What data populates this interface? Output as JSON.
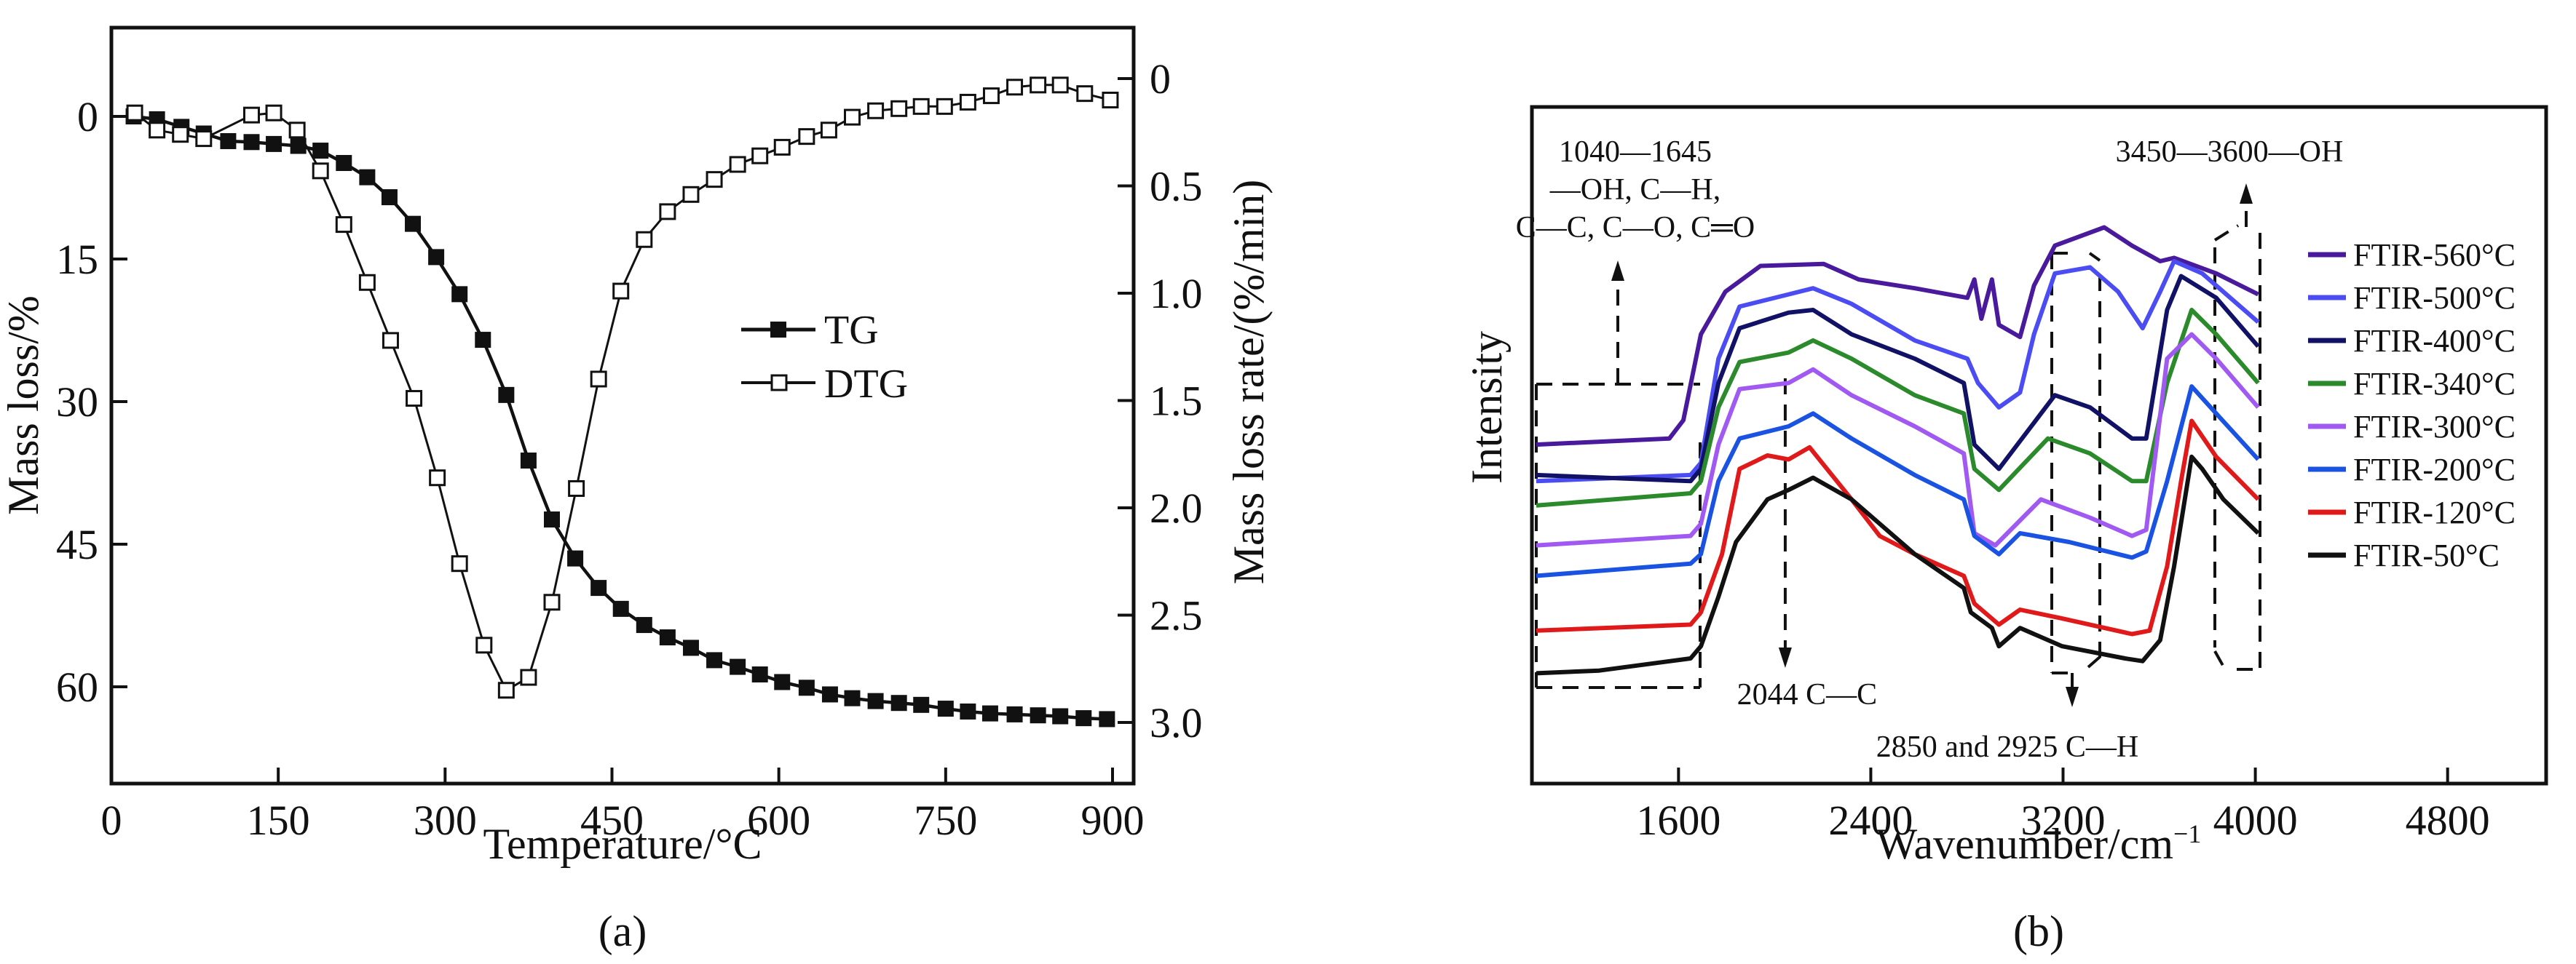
{
  "chart_data": [
    {
      "id": "a",
      "type": "line",
      "panel_label": "(a)",
      "xlabel": "Temperature/°C",
      "ylabel": "Mass loss/%",
      "y2label": "Mass loss rate/(%/min)",
      "xlim": [
        0,
        920
      ],
      "ylim": [
        69,
        -8
      ],
      "y2lim": [
        3.25,
        -0.12
      ],
      "xticks": [
        0,
        150,
        300,
        450,
        600,
        750,
        900
      ],
      "yticks": [
        0,
        15,
        30,
        45,
        60
      ],
      "y2ticks": [
        0,
        0.5,
        1.0,
        1.5,
        2.0,
        2.5,
        3.0
      ],
      "y2tick_labels": [
        "0",
        "0.5",
        "1.0",
        "1.5",
        "2.0",
        "2.5",
        "3.0"
      ],
      "grid": false,
      "legend_position": "center-right",
      "series": [
        {
          "name": "TG",
          "axis": "left",
          "marker": "filled-square",
          "x": [
            20,
            41,
            63,
            83,
            105,
            126,
            146,
            168,
            188,
            209,
            230,
            250,
            271,
            292,
            313,
            334,
            355,
            375,
            396,
            417,
            438,
            458,
            479,
            500,
            521,
            542,
            563,
            583,
            603,
            625,
            646,
            666,
            687,
            708,
            728,
            750,
            770,
            790,
            812,
            833,
            853,
            874,
            895
          ],
          "values": [
            0.0,
            0.3,
            1.1,
            1.8,
            2.6,
            2.7,
            2.9,
            3.1,
            3.6,
            4.9,
            6.4,
            8.5,
            11.3,
            14.8,
            18.7,
            23.5,
            29.3,
            36.2,
            42.4,
            46.5,
            49.6,
            51.8,
            53.5,
            54.8,
            55.9,
            57.2,
            57.9,
            58.7,
            59.5,
            60.1,
            60.8,
            61.2,
            61.5,
            61.7,
            61.9,
            62.3,
            62.6,
            62.8,
            62.9,
            63.0,
            63.1,
            63.3,
            63.4
          ]
        },
        {
          "name": "DTG",
          "axis": "right",
          "marker": "open-square",
          "x": [
            21,
            41,
            62,
            83,
            126,
            146,
            167,
            188,
            209,
            230,
            251,
            272,
            293,
            313,
            335,
            355,
            375,
            396,
            418,
            438,
            458,
            479,
            500,
            521,
            542,
            563,
            583,
            603,
            625,
            645,
            666,
            687,
            708,
            728,
            749,
            770,
            791,
            812,
            833,
            853,
            875,
            898
          ],
          "values": [
            0.16,
            0.24,
            0.26,
            0.28,
            0.17,
            0.16,
            0.24,
            0.43,
            0.68,
            0.95,
            1.22,
            1.49,
            1.86,
            2.26,
            2.64,
            2.85,
            2.79,
            2.44,
            1.91,
            1.4,
            0.99,
            0.75,
            0.62,
            0.54,
            0.47,
            0.4,
            0.36,
            0.32,
            0.27,
            0.24,
            0.18,
            0.15,
            0.14,
            0.13,
            0.13,
            0.11,
            0.08,
            0.04,
            0.03,
            0.03,
            0.07,
            0.1
          ]
        }
      ]
    },
    {
      "id": "b",
      "type": "line",
      "panel_label": "(b)",
      "xlabel": "Wavenumber/cm",
      "xlabel_superscript": "−1",
      "ylabel": "Intensity",
      "xlim": [
        990,
        5210
      ],
      "ylim": [
        0,
        100
      ],
      "y_units": "arbitrary (relative, 0–100 of plot height)",
      "xticks": [
        1600,
        2400,
        3200,
        4000,
        4800
      ],
      "yticks": [],
      "grid": false,
      "legend_position": "right",
      "annotations": [
        {
          "id": "box-1040-1645",
          "lines": [
            "1040—1645",
            "—OH, C—H,",
            "C—C, C—O, C═O"
          ],
          "range": [
            1000,
            1660
          ],
          "arrow": "up"
        },
        {
          "id": "mark-2044",
          "lines": [
            "2044 C—C"
          ],
          "at": 2044,
          "arrow": "down"
        },
        {
          "id": "box-2850-2925",
          "lines": [
            "2850 and 2925 C—H"
          ],
          "range": [
            2780,
            3000
          ],
          "arrow": "down"
        },
        {
          "id": "box-3450-3600",
          "lines": [
            "3450—3600—OH"
          ],
          "range": [
            3450,
            3620
          ],
          "arrow": "up"
        }
      ],
      "series": [
        {
          "name": "FTIR-560°C",
          "color": "#4a1a9c",
          "points": [
            [
              1008,
              50.1
            ],
            [
              1562,
              51.0
            ],
            [
              1620,
              53.7
            ],
            [
              1693,
              66.4
            ],
            [
              1795,
              72.7
            ],
            [
              1941,
              76.5
            ],
            [
              2204,
              76.8
            ],
            [
              2350,
              74.5
            ],
            [
              2583,
              73.2
            ],
            [
              2802,
              71.8
            ],
            [
              2831,
              74.5
            ],
            [
              2860,
              68.7
            ],
            [
              2904,
              74.5
            ],
            [
              2933,
              67.8
            ],
            [
              3021,
              66.0
            ],
            [
              3079,
              73.6
            ],
            [
              3166,
              79.5
            ],
            [
              3371,
              82.2
            ],
            [
              3487,
              79.5
            ],
            [
              3604,
              77.2
            ],
            [
              3662,
              77.7
            ],
            [
              3837,
              75.4
            ],
            [
              4012,
              72.3
            ]
          ]
        },
        {
          "name": "FTIR-500°C",
          "color": "#4b4df2",
          "points": [
            [
              1008,
              44.7
            ],
            [
              1650,
              45.6
            ],
            [
              1693,
              47.4
            ],
            [
              1766,
              62.8
            ],
            [
              1854,
              70.5
            ],
            [
              2058,
              72.3
            ],
            [
              2160,
              73.2
            ],
            [
              2320,
              70.9
            ],
            [
              2583,
              65.5
            ],
            [
              2802,
              62.8
            ],
            [
              2846,
              59.2
            ],
            [
              2933,
              55.6
            ],
            [
              3021,
              57.8
            ],
            [
              3079,
              66.4
            ],
            [
              3166,
              75.4
            ],
            [
              3312,
              76.3
            ],
            [
              3429,
              72.7
            ],
            [
              3531,
              67.3
            ],
            [
              3604,
              72.7
            ],
            [
              3662,
              77.2
            ],
            [
              3779,
              75.4
            ],
            [
              4012,
              68.2
            ]
          ]
        },
        {
          "name": "FTIR-400°C",
          "color": "#111165",
          "points": [
            [
              1008,
              45.6
            ],
            [
              1650,
              44.7
            ],
            [
              1693,
              46.5
            ],
            [
              1766,
              59.2
            ],
            [
              1854,
              67.3
            ],
            [
              2058,
              69.6
            ],
            [
              2160,
              70.0
            ],
            [
              2320,
              66.4
            ],
            [
              2583,
              62.8
            ],
            [
              2787,
              59.2
            ],
            [
              2831,
              50.1
            ],
            [
              2933,
              46.5
            ],
            [
              3166,
              57.4
            ],
            [
              3312,
              55.6
            ],
            [
              3487,
              51.0
            ],
            [
              3546,
              51.0
            ],
            [
              3633,
              70.0
            ],
            [
              3691,
              75.0
            ],
            [
              3837,
              71.8
            ],
            [
              4012,
              64.6
            ]
          ]
        },
        {
          "name": "FTIR-340°C",
          "color": "#2b8a2b",
          "points": [
            [
              1008,
              41.1
            ],
            [
              1650,
              42.9
            ],
            [
              1693,
              44.7
            ],
            [
              1766,
              55.6
            ],
            [
              1854,
              62.3
            ],
            [
              2058,
              63.7
            ],
            [
              2160,
              65.5
            ],
            [
              2320,
              62.8
            ],
            [
              2583,
              57.4
            ],
            [
              2787,
              54.7
            ],
            [
              2831,
              46.5
            ],
            [
              2933,
              43.4
            ],
            [
              3137,
              51.0
            ],
            [
              3312,
              48.8
            ],
            [
              3487,
              44.7
            ],
            [
              3546,
              44.7
            ],
            [
              3633,
              59.2
            ],
            [
              3735,
              70.0
            ],
            [
              3837,
              66.4
            ],
            [
              4012,
              59.2
            ]
          ]
        },
        {
          "name": "FTIR-300°C",
          "color": "#a05af2",
          "points": [
            [
              1008,
              35.2
            ],
            [
              1650,
              36.6
            ],
            [
              1693,
              38.4
            ],
            [
              1766,
              50.1
            ],
            [
              1854,
              58.3
            ],
            [
              2058,
              59.2
            ],
            [
              2160,
              61.2
            ],
            [
              2320,
              57.4
            ],
            [
              2583,
              52.8
            ],
            [
              2787,
              48.8
            ],
            [
              2831,
              37.0
            ],
            [
              2918,
              35.2
            ],
            [
              3108,
              42.0
            ],
            [
              3312,
              39.3
            ],
            [
              3487,
              36.6
            ],
            [
              3546,
              37.5
            ],
            [
              3633,
              62.8
            ],
            [
              3735,
              66.4
            ],
            [
              3837,
              62.8
            ],
            [
              4012,
              55.6
            ]
          ]
        },
        {
          "name": "FTIR-200°C",
          "color": "#1a52e2",
          "points": [
            [
              1008,
              30.7
            ],
            [
              1650,
              32.5
            ],
            [
              1693,
              33.9
            ],
            [
              1766,
              44.7
            ],
            [
              1854,
              51.0
            ],
            [
              2058,
              52.8
            ],
            [
              2160,
              54.7
            ],
            [
              2320,
              51.0
            ],
            [
              2583,
              45.6
            ],
            [
              2787,
              42.0
            ],
            [
              2831,
              36.6
            ],
            [
              2933,
              33.9
            ],
            [
              3021,
              37.0
            ],
            [
              3225,
              35.7
            ],
            [
              3487,
              33.4
            ],
            [
              3546,
              34.3
            ],
            [
              3633,
              44.7
            ],
            [
              3735,
              58.7
            ],
            [
              3837,
              54.7
            ],
            [
              4012,
              47.9
            ]
          ]
        },
        {
          "name": "FTIR-120°C",
          "color": "#e01a1a",
          "points": [
            [
              1008,
              22.6
            ],
            [
              1650,
              23.5
            ],
            [
              1693,
              25.3
            ],
            [
              1781,
              33.9
            ],
            [
              1854,
              46.5
            ],
            [
              1970,
              48.5
            ],
            [
              2058,
              47.9
            ],
            [
              2145,
              49.7
            ],
            [
              2320,
              42.0
            ],
            [
              2437,
              36.6
            ],
            [
              2583,
              33.9
            ],
            [
              2787,
              30.7
            ],
            [
              2831,
              26.6
            ],
            [
              2933,
              23.5
            ],
            [
              3021,
              25.7
            ],
            [
              3196,
              24.4
            ],
            [
              3487,
              22.1
            ],
            [
              3560,
              22.6
            ],
            [
              3633,
              32.1
            ],
            [
              3691,
              44.7
            ],
            [
              3735,
              53.6
            ],
            [
              3837,
              48.3
            ],
            [
              4012,
              42.0
            ]
          ]
        },
        {
          "name": "FTIR-50°C",
          "color": "#111111",
          "points": [
            [
              1008,
              16.3
            ],
            [
              1270,
              16.7
            ],
            [
              1650,
              18.5
            ],
            [
              1693,
              20.3
            ],
            [
              1766,
              27.6
            ],
            [
              1839,
              35.7
            ],
            [
              1970,
              42.0
            ],
            [
              2058,
              43.4
            ],
            [
              2160,
              45.2
            ],
            [
              2320,
              42.0
            ],
            [
              2437,
              38.4
            ],
            [
              2583,
              33.9
            ],
            [
              2787,
              28.9
            ],
            [
              2816,
              25.3
            ],
            [
              2904,
              23.0
            ],
            [
              2933,
              20.3
            ],
            [
              3021,
              23.0
            ],
            [
              3196,
              20.3
            ],
            [
              3458,
              18.5
            ],
            [
              3531,
              18.1
            ],
            [
              3604,
              21.2
            ],
            [
              3662,
              32.1
            ],
            [
              3735,
              48.3
            ],
            [
              3779,
              46.5
            ],
            [
              3867,
              42.0
            ],
            [
              4012,
              37.0
            ]
          ]
        }
      ]
    }
  ]
}
